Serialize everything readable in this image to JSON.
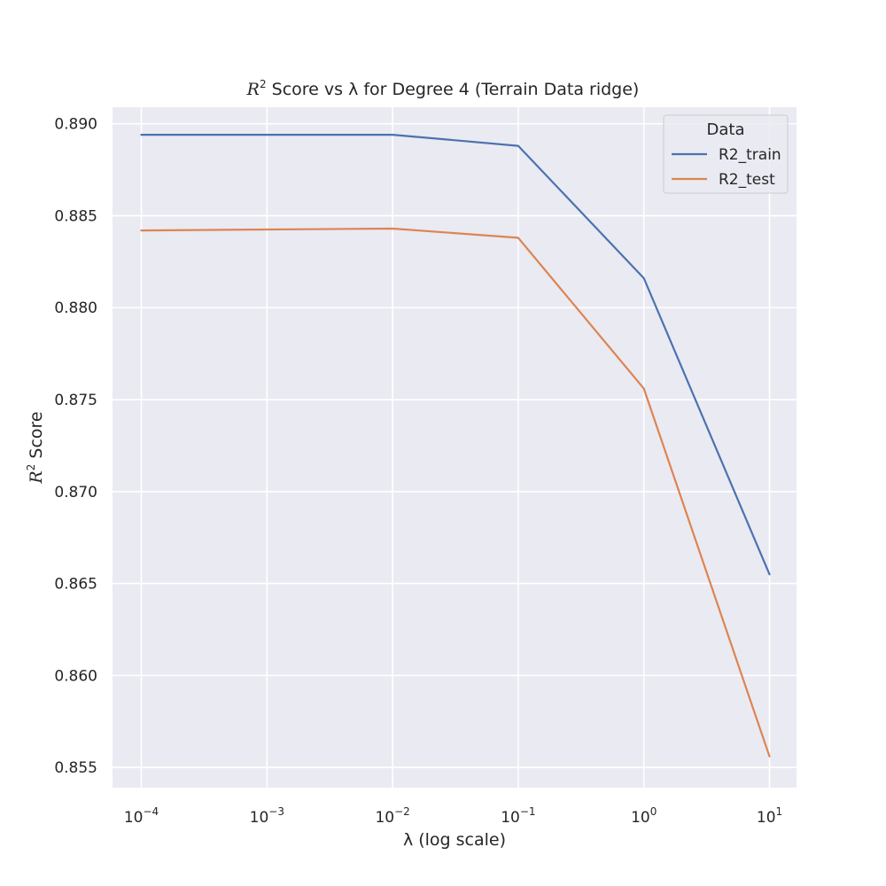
{
  "chart_data": {
    "type": "line",
    "title": {
      "r2_symbol": "R",
      "r2_exponent": "2",
      "rest": " Score vs λ for Degree 4 (Terrain Data ridge)"
    },
    "xlabel": "λ (log scale)",
    "ylabel": {
      "r2_symbol": "R",
      "r2_exponent": "2",
      "rest": " Score"
    },
    "x_scale": "log",
    "x": [
      0.0001,
      0.01,
      0.1,
      1,
      10
    ],
    "x_ticks": [
      {
        "value": 0.0001,
        "base": "10",
        "exp": "−4"
      },
      {
        "value": 0.001,
        "base": "10",
        "exp": "−3"
      },
      {
        "value": 0.01,
        "base": "10",
        "exp": "−2"
      },
      {
        "value": 0.1,
        "base": "10",
        "exp": "−1"
      },
      {
        "value": 1,
        "base": "10",
        "exp": "0"
      },
      {
        "value": 10,
        "base": "10",
        "exp": "1"
      }
    ],
    "xlim": [
      5.9e-05,
      16.4
    ],
    "ylim": [
      0.8539,
      0.8909
    ],
    "y_ticks": [
      "0.855",
      "0.860",
      "0.865",
      "0.870",
      "0.875",
      "0.880",
      "0.885",
      "0.890"
    ],
    "grid": true,
    "legend": {
      "title": "Data",
      "placement": "top-right"
    },
    "series": [
      {
        "name": "R2_train",
        "color": "#4c72b0",
        "values": [
          0.8894,
          0.8894,
          0.8888,
          0.8816,
          0.8655
        ]
      },
      {
        "name": "R2_test",
        "color": "#dd8452",
        "values": [
          0.8842,
          0.8843,
          0.8838,
          0.8756,
          0.8556
        ]
      }
    ]
  }
}
